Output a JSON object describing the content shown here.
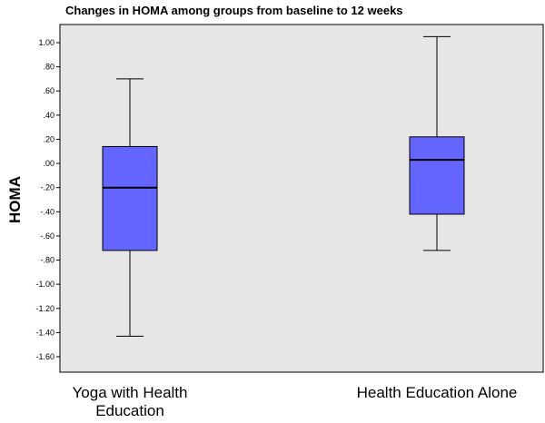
{
  "chart_data": {
    "type": "box",
    "title": "Changes in HOMA among groups from baseline to 12 weeks",
    "ylabel": "HOMA",
    "xlabel": "",
    "ylim": [
      -1.7,
      1.1
    ],
    "yticks": [
      1.0,
      0.8,
      0.6,
      0.4,
      0.2,
      0.0,
      -0.2,
      -0.4,
      -0.6,
      -0.8,
      -1.0,
      -1.2,
      -1.4,
      -1.6
    ],
    "ytick_labels": [
      "1.00",
      ".80",
      ".60",
      ".40",
      ".20",
      ".00",
      "-.20",
      "-.40",
      "-.60",
      "-.80",
      "-1.00",
      "-1.20",
      "-1.40",
      "-1.60"
    ],
    "categories": [
      [
        "Yoga with Health",
        "Education"
      ],
      [
        "Health Education Alone"
      ]
    ],
    "boxes": [
      {
        "whisker_low": -1.43,
        "q1": -0.72,
        "median": -0.2,
        "q3": 0.14,
        "whisker_high": 0.7
      },
      {
        "whisker_low": -0.72,
        "q1": -0.42,
        "median": 0.03,
        "q3": 0.22,
        "whisker_high": 1.05
      }
    ],
    "grid": false,
    "colors": {
      "plot_background": "#e6e6e6",
      "box_fill": "#6464ff",
      "line": "#000000"
    }
  }
}
